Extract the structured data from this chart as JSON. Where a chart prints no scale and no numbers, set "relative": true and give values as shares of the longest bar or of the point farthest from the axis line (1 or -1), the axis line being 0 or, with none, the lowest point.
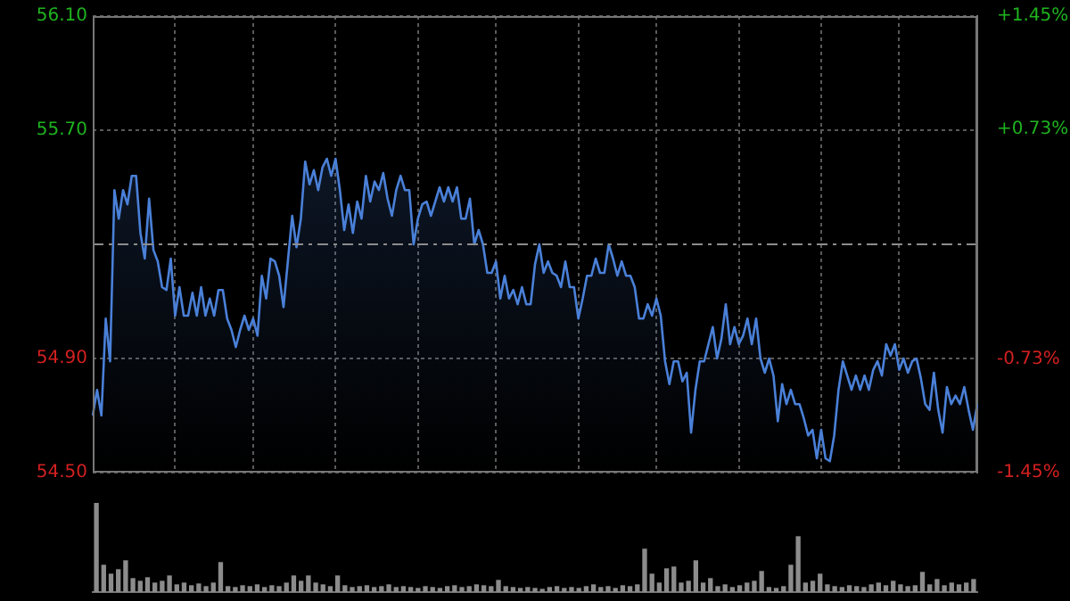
{
  "chart_data": [
    {
      "type": "area",
      "categories": [
        null,
        null,
        null,
        null,
        null,
        null,
        null,
        null,
        null,
        null,
        null,
        null,
        null,
        null,
        null,
        null,
        null,
        null,
        null,
        null,
        null,
        null,
        null,
        null,
        null,
        null,
        null,
        null,
        null,
        null,
        null,
        null,
        null,
        null,
        null,
        null,
        null,
        null,
        null,
        null,
        null,
        null,
        null,
        null,
        null,
        null,
        null,
        null,
        null,
        null,
        null,
        null,
        null,
        null,
        null,
        null,
        null,
        null,
        null,
        null,
        null,
        null,
        null,
        null,
        null,
        null,
        null,
        null,
        null,
        null,
        null,
        null,
        null,
        null,
        null,
        null,
        null,
        null,
        null,
        null,
        null,
        null,
        null,
        null,
        null,
        null,
        null,
        null,
        null,
        null,
        null,
        null,
        null,
        null,
        null,
        null,
        null,
        null,
        null,
        null,
        null,
        null,
        null,
        null,
        null,
        null,
        null,
        null,
        null,
        null,
        null,
        null,
        null,
        null,
        null,
        null,
        null,
        null,
        null,
        null,
        null,
        null,
        null,
        null,
        null,
        null,
        null,
        null,
        null,
        null,
        null,
        null,
        null,
        null,
        null,
        null,
        null,
        null,
        null,
        null,
        null,
        null,
        null,
        null,
        null,
        null,
        null,
        null,
        null,
        null,
        null,
        null,
        null,
        null,
        null,
        null,
        null,
        null,
        null,
        null,
        null,
        null,
        null,
        null,
        null,
        null,
        null,
        null,
        null,
        null,
        null,
        null,
        null,
        null,
        null,
        null,
        null,
        null,
        null,
        null,
        null,
        null,
        null,
        null,
        null,
        null,
        null,
        null,
        null,
        null,
        null,
        null,
        null,
        null,
        null,
        null,
        null,
        null,
        null,
        null,
        null,
        null,
        null,
        null,
        null
      ],
      "ylim": [
        54.5,
        56.1
      ],
      "yticks": [
        {
          "value": 54.5,
          "label": "54.50"
        },
        {
          "value": 54.9,
          "label": "54.90"
        },
        {
          "value": 55.7,
          "label": "55.70"
        },
        {
          "value": 56.1,
          "label": "56.10"
        }
      ],
      "y2lim": [
        -1.45,
        1.45
      ],
      "y2ticks": [
        {
          "value": -1.45,
          "label": "-1.45%"
        },
        {
          "value": -0.73,
          "label": "-0.73%"
        },
        {
          "value": 0.73,
          "label": "+0.73%"
        },
        {
          "value": 1.45,
          "label": "+1.45%"
        }
      ],
      "tick_labels": "y",
      "grid": true,
      "ref_lines": [
        {
          "axis": "y",
          "value": 55.3,
          "label": null,
          "color": "#8c8c8c",
          "line_style": "dashed"
        }
      ],
      "series": [
        {
          "color": "#4a80d8",
          "values": [
            54.7,
            54.79,
            54.7,
            55.04,
            54.89,
            55.49,
            55.39,
            55.49,
            55.44,
            55.54,
            55.54,
            55.34,
            55.25,
            55.46,
            55.28,
            55.24,
            55.15,
            55.14,
            55.25,
            55.05,
            55.15,
            55.05,
            55.05,
            55.13,
            55.05,
            55.15,
            55.05,
            55.11,
            55.05,
            55.14,
            55.14,
            55.04,
            55.0,
            54.94,
            55.0,
            55.05,
            55.0,
            55.04,
            54.98,
            55.19,
            55.11,
            55.25,
            55.24,
            55.19,
            55.08,
            55.24,
            55.4,
            55.29,
            55.39,
            55.59,
            55.51,
            55.56,
            55.49,
            55.57,
            55.6,
            55.54,
            55.6,
            55.49,
            55.35,
            55.44,
            55.34,
            55.45,
            55.39,
            55.54,
            55.45,
            55.52,
            55.49,
            55.55,
            55.46,
            55.4,
            55.49,
            55.54,
            55.49,
            55.49,
            55.3,
            55.39,
            55.44,
            55.45,
            55.4,
            55.45,
            55.5,
            55.45,
            55.5,
            55.45,
            55.5,
            55.39,
            55.39,
            55.46,
            55.3,
            55.35,
            55.3,
            55.2,
            55.2,
            55.24,
            55.11,
            55.19,
            55.11,
            55.14,
            55.09,
            55.15,
            55.09,
            55.09,
            55.23,
            55.3,
            55.2,
            55.24,
            55.2,
            55.19,
            55.15,
            55.24,
            55.15,
            55.15,
            55.04,
            55.11,
            55.19,
            55.19,
            55.25,
            55.2,
            55.2,
            55.3,
            55.25,
            55.19,
            55.24,
            55.19,
            55.19,
            55.15,
            55.04,
            55.04,
            55.09,
            55.05,
            55.11,
            55.05,
            54.89,
            54.81,
            54.89,
            54.89,
            54.82,
            54.85,
            54.64,
            54.79,
            54.89,
            54.89,
            54.95,
            55.01,
            54.9,
            54.97,
            55.09,
            54.95,
            55.01,
            54.95,
            54.98,
            55.04,
            54.95,
            55.04,
            54.9,
            54.85,
            54.9,
            54.84,
            54.68,
            54.81,
            54.74,
            54.79,
            54.74,
            54.74,
            54.69,
            54.63,
            54.65,
            54.55,
            54.65,
            54.55,
            54.54,
            54.63,
            54.79,
            54.89,
            54.84,
            54.79,
            54.84,
            54.79,
            54.84,
            54.79,
            54.86,
            54.89,
            54.84,
            54.95,
            54.91,
            54.95,
            54.86,
            54.9,
            54.85,
            54.89,
            54.9,
            54.83,
            54.74,
            54.72,
            54.85,
            54.72,
            54.64,
            54.8,
            54.74,
            54.77,
            54.74,
            54.8,
            54.72,
            54.65,
            54.74
          ]
        }
      ]
    },
    {
      "type": "bar",
      "relative": true,
      "color": "#8c8c8c",
      "categories": [
        null,
        null,
        null,
        null,
        null,
        null,
        null,
        null,
        null,
        null,
        null,
        null,
        null,
        null,
        null,
        null,
        null,
        null,
        null,
        null,
        null,
        null,
        null,
        null,
        null,
        null,
        null,
        null,
        null,
        null,
        null,
        null,
        null,
        null,
        null,
        null,
        null,
        null,
        null,
        null,
        null,
        null,
        null,
        null,
        null,
        null,
        null,
        null,
        null,
        null,
        null,
        null,
        null,
        null,
        null,
        null,
        null,
        null,
        null,
        null,
        null,
        null,
        null,
        null,
        null,
        null,
        null,
        null,
        null,
        null,
        null,
        null,
        null,
        null,
        null,
        null,
        null,
        null,
        null,
        null,
        null,
        null,
        null,
        null,
        null,
        null,
        null,
        null,
        null,
        null,
        null,
        null,
        null,
        null,
        null,
        null,
        null,
        null,
        null,
        null,
        null,
        null,
        null,
        null,
        null,
        null,
        null,
        null,
        null,
        null,
        null,
        null,
        null,
        null,
        null,
        null,
        null,
        null,
        null,
        null,
        null
      ],
      "values": [
        1.0,
        0.3,
        0.2,
        0.25,
        0.35,
        0.15,
        0.12,
        0.16,
        0.1,
        0.12,
        0.18,
        0.08,
        0.1,
        0.07,
        0.09,
        0.06,
        0.1,
        0.33,
        0.06,
        0.05,
        0.07,
        0.06,
        0.08,
        0.05,
        0.07,
        0.06,
        0.1,
        0.18,
        0.12,
        0.18,
        0.1,
        0.08,
        0.06,
        0.18,
        0.07,
        0.05,
        0.06,
        0.07,
        0.05,
        0.06,
        0.08,
        0.05,
        0.06,
        0.05,
        0.04,
        0.06,
        0.05,
        0.04,
        0.06,
        0.07,
        0.05,
        0.06,
        0.08,
        0.07,
        0.06,
        0.13,
        0.06,
        0.05,
        0.04,
        0.05,
        0.04,
        0.03,
        0.05,
        0.06,
        0.04,
        0.05,
        0.04,
        0.06,
        0.08,
        0.05,
        0.06,
        0.04,
        0.07,
        0.06,
        0.08,
        0.48,
        0.2,
        0.1,
        0.26,
        0.28,
        0.1,
        0.12,
        0.35,
        0.1,
        0.15,
        0.06,
        0.08,
        0.05,
        0.07,
        0.1,
        0.12,
        0.23,
        0.05,
        0.04,
        0.06,
        0.3,
        0.62,
        0.1,
        0.12,
        0.2,
        0.08,
        0.06,
        0.05,
        0.07,
        0.06,
        0.05,
        0.08,
        0.1,
        0.07,
        0.12,
        0.08,
        0.06,
        0.07,
        0.22,
        0.08,
        0.14,
        0.07,
        0.1,
        0.08,
        0.1,
        0.14
      ]
    }
  ]
}
